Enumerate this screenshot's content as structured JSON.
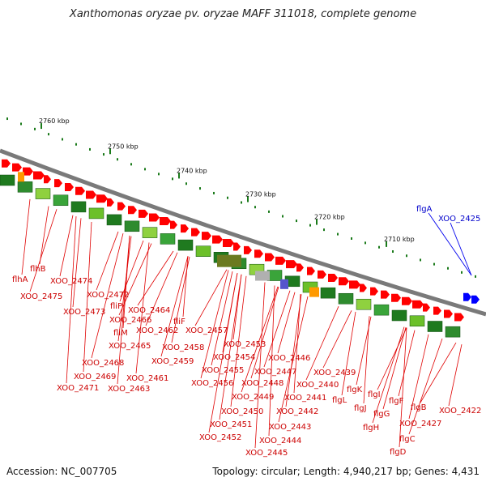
{
  "title": "Xanthomonas oryzae pv. oryzae MAFF 311018, complete genome",
  "footer": {
    "accession": "Accession: NC_007705",
    "summary": "Topology: circular; Length: 4,940,217 bp; Genes: 4,431"
  },
  "scale": {
    "ticks": [
      "2760 kbp",
      "2750 kbp",
      "2740 kbp",
      "2730 kbp",
      "2720 kbp",
      "2710 kbp"
    ]
  },
  "colors": {
    "forward_gene": "#ff0000",
    "cds_dark": "#1f7a1f",
    "cds_light": "#8fd13f",
    "highlight_label": "#0000cc",
    "label": "#cc0000",
    "backbone": "#808080"
  },
  "labels": {
    "red": [
      "flhA",
      "flhB",
      "XOO_2474",
      "XOO_2475",
      "XOO_2472",
      "XOO_2473",
      "fliP",
      "XOO_2464",
      "XOO_2466",
      "fliM",
      "XOO_2465",
      "fliF",
      "XOO_2462",
      "XOO_2457",
      "XOO_2458",
      "XOO_2468",
      "XOO_2459",
      "XOO_2469",
      "XOO_2471",
      "XOO_2461",
      "XOO_2463",
      "XOO_2453",
      "XOO_2454",
      "XOO_2446",
      "XOO_2447",
      "XOO_2455",
      "XOO_2440",
      "XOO_2439",
      "XOO_2456",
      "XOO_2448",
      "XOO_2449",
      "XOO_2441",
      "flgK",
      "flgL",
      "flgI",
      "flgF",
      "XOO_2450",
      "XOO_2442",
      "flgJ",
      "flgG",
      "flgB",
      "XOO_2451",
      "XOO_2443",
      "flgH",
      "XOO_2427",
      "XOO_2422",
      "XOO_2452",
      "XOO_2444",
      "flgC",
      "XOO_2445",
      "flgD"
    ],
    "blue": [
      "flgA",
      "XOO_2425"
    ]
  }
}
